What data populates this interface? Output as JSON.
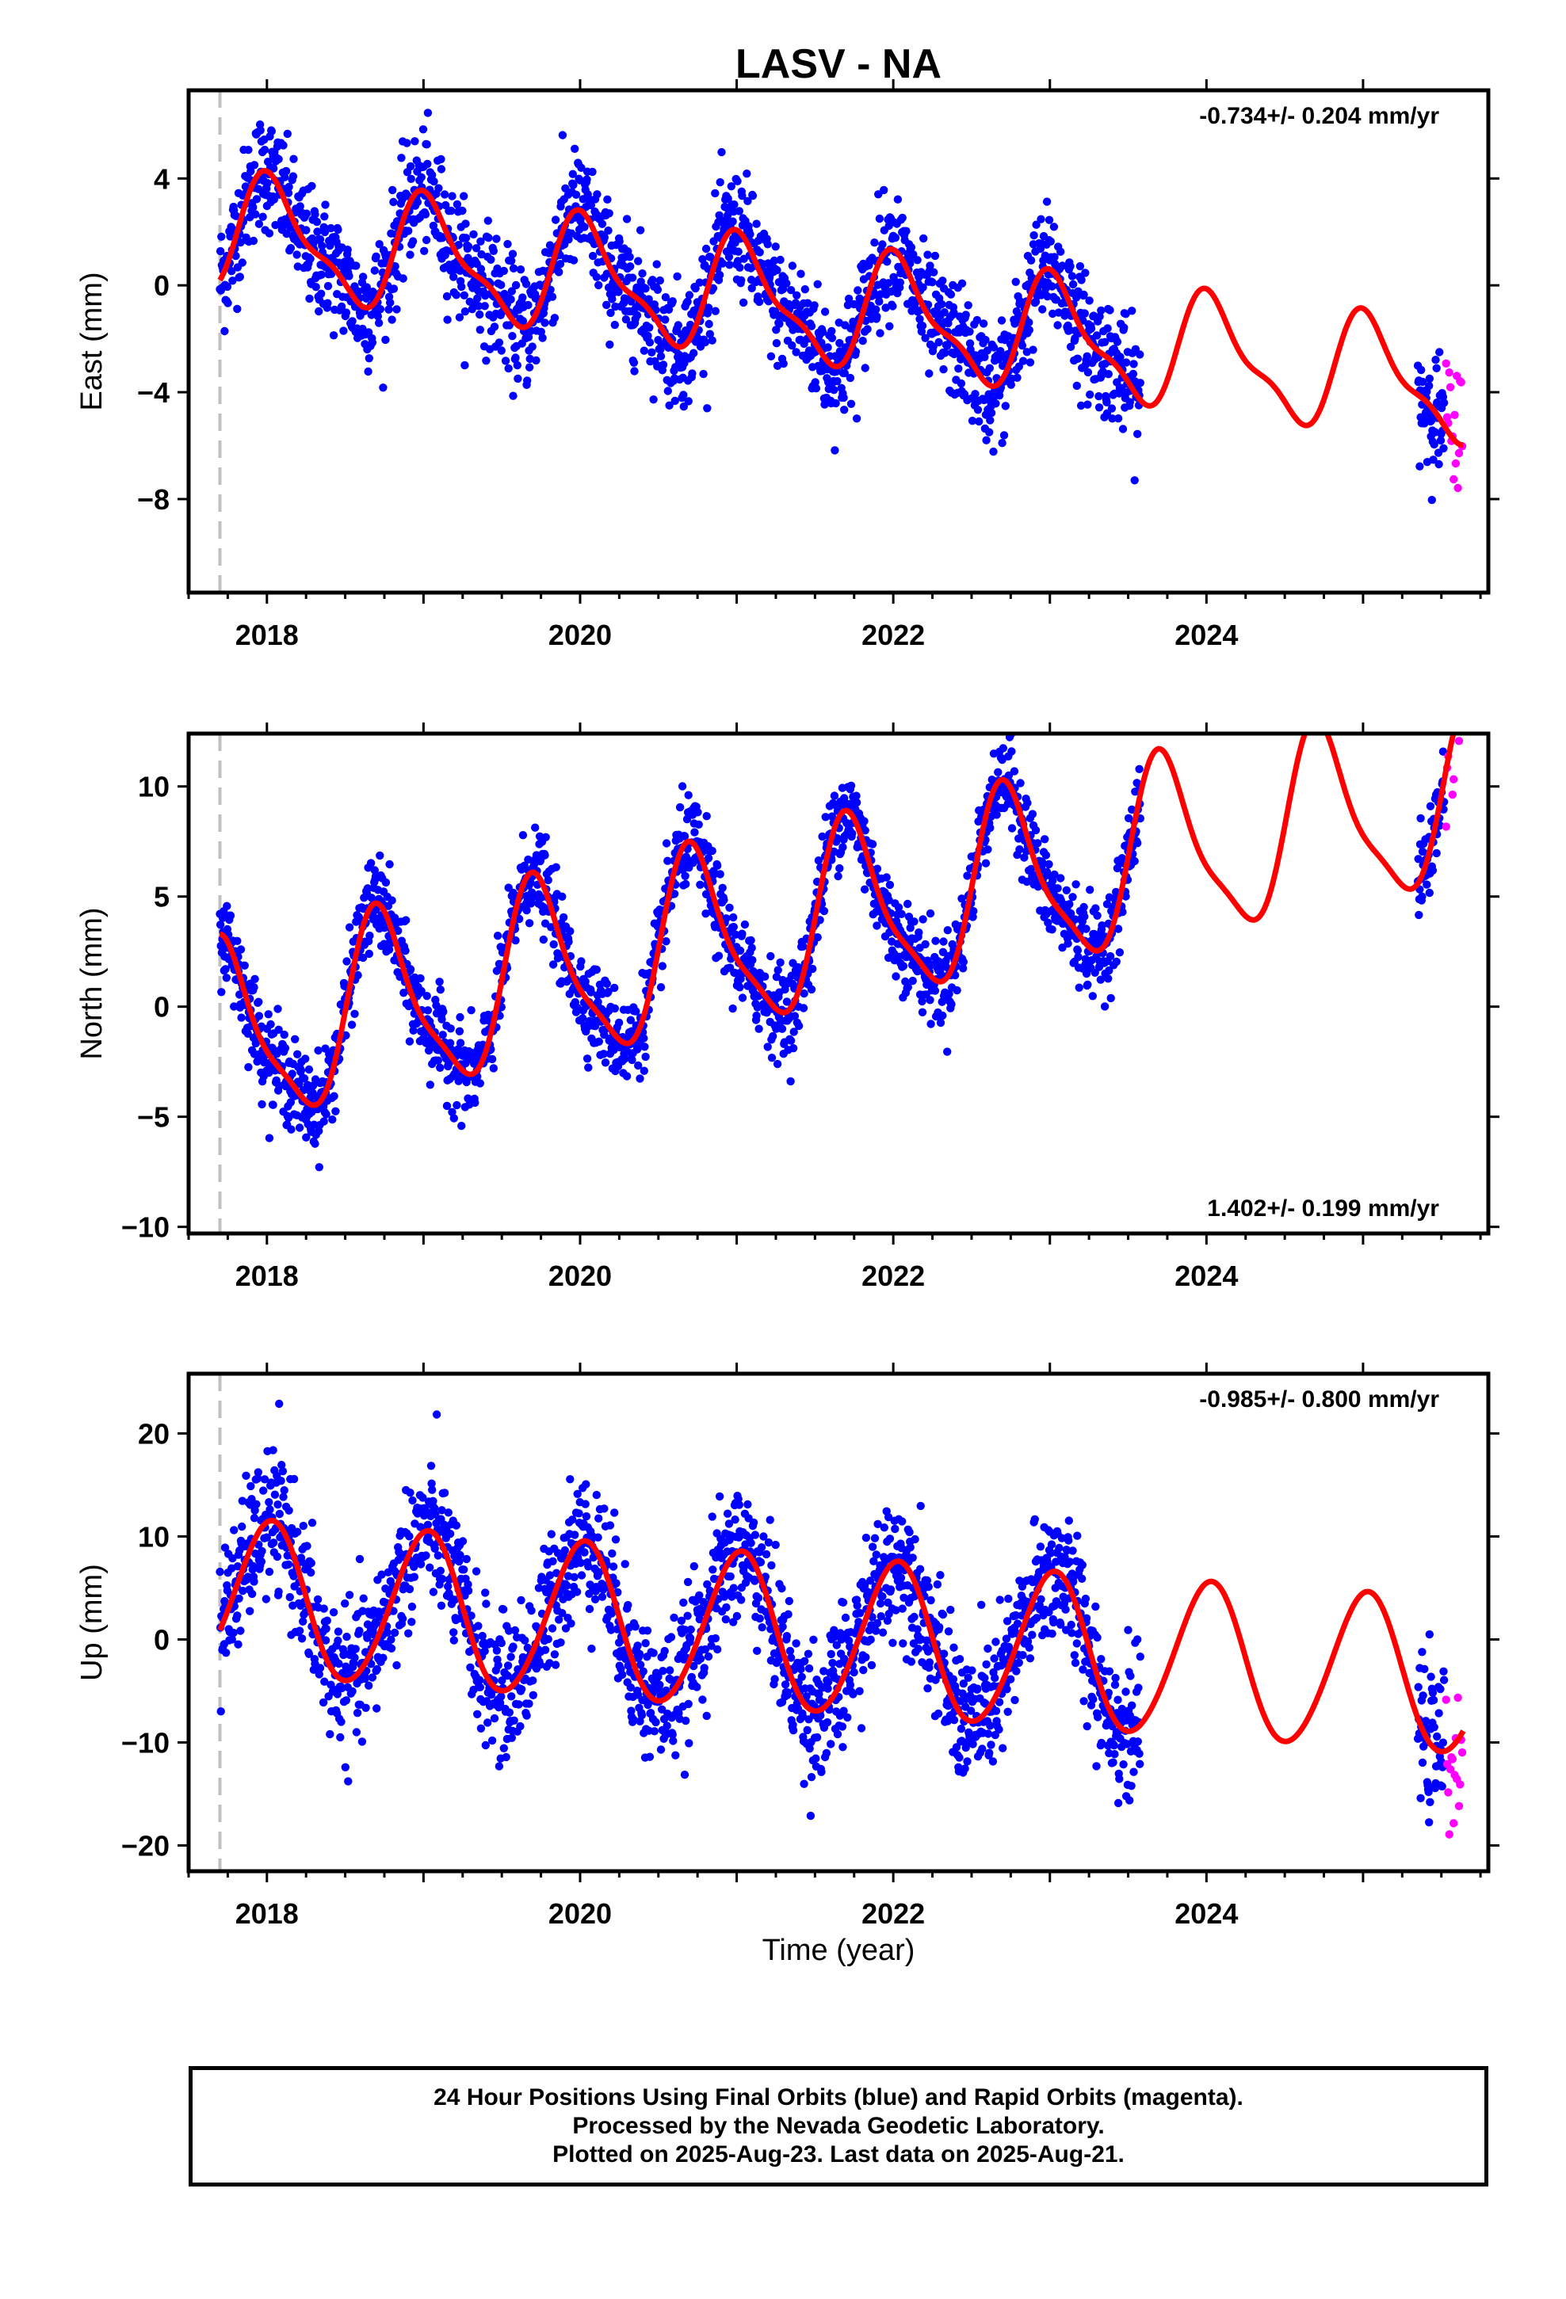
{
  "title": "LASV - NA",
  "colors": {
    "final": "#0000ff",
    "rapid": "#ff00ff",
    "model": "#ff0000",
    "marker": "#c0c0c0"
  },
  "xlabel": "Time (year)",
  "footer": {
    "line1": "24 Hour Positions Using Final Orbits (blue) and Rapid Orbits (magenta).",
    "line2": "Processed by the Nevada Geodetic Laboratory.",
    "line3": "Plotted on 2025-Aug-23. Last data on 2025-Aug-21."
  },
  "chart_data": [
    {
      "type": "scatter",
      "component": "east",
      "ylabel": "East (mm)",
      "rate_text": "-0.734+/- 0.204 mm/yr",
      "rate_position": "top-right",
      "xlim": [
        2017.5,
        2025.8
      ],
      "ylim": [
        -11.5,
        7.3
      ],
      "xticks": [
        2018,
        2020,
        2022,
        2024
      ],
      "yticks": [
        -8,
        -4,
        0,
        4
      ],
      "equipment_change_year": 2017.7,
      "model": {
        "trend": -0.734,
        "offset": 2.0,
        "annual_amp": 2.0,
        "annual_phase": 1.3,
        "semiannual_amp": 0.7,
        "semiannual_phase": 2.2
      },
      "scatter_sigma": 1.1,
      "final_segments": [
        [
          2017.7,
          2023.58
        ],
        [
          2025.35,
          2025.52
        ]
      ],
      "rapid_range": [
        2025.53,
        2025.64
      ]
    },
    {
      "type": "scatter",
      "component": "north",
      "ylabel": "North (mm)",
      "rate_text": "1.402+/- 0.199 mm/yr",
      "rate_position": "bottom-right",
      "xlim": [
        2017.5,
        2025.8
      ],
      "ylim": [
        -10.3,
        12.4
      ],
      "xticks": [
        2018,
        2020,
        2022,
        2024
      ],
      "yticks": [
        -10,
        -5,
        0,
        5,
        10
      ],
      "equipment_change_year": 2017.7,
      "model": {
        "trend": 1.402,
        "offset": -1.5,
        "annual_amp": 4.0,
        "annual_phase": -3.0,
        "semiannual_amp": 1.0,
        "semiannual_phase": -0.4
      },
      "scatter_sigma": 1.0,
      "final_segments": [
        [
          2017.7,
          2023.58
        ],
        [
          2025.35,
          2025.52
        ]
      ],
      "rapid_range": [
        2025.53,
        2025.64
      ]
    },
    {
      "type": "scatter",
      "component": "up",
      "ylabel": "Up (mm)",
      "rate_text": "-0.985+/- 0.800 mm/yr",
      "rate_position": "top-right",
      "xlim": [
        2017.5,
        2025.8
      ],
      "ylim": [
        -22.5,
        25.8
      ],
      "xticks": [
        2018,
        2020,
        2022,
        2024
      ],
      "yticks": [
        -20,
        -10,
        0,
        10,
        20
      ],
      "equipment_change_year": 2017.7,
      "model": {
        "trend": -0.985,
        "offset": 4.0,
        "annual_amp": 7.5,
        "annual_phase": 1.45,
        "semiannual_amp": 0.5,
        "semiannual_phase": 0.5
      },
      "scatter_sigma": 3.3,
      "final_segments": [
        [
          2017.7,
          2023.58
        ],
        [
          2025.35,
          2025.52
        ]
      ],
      "rapid_range": [
        2025.53,
        2025.64
      ]
    }
  ]
}
